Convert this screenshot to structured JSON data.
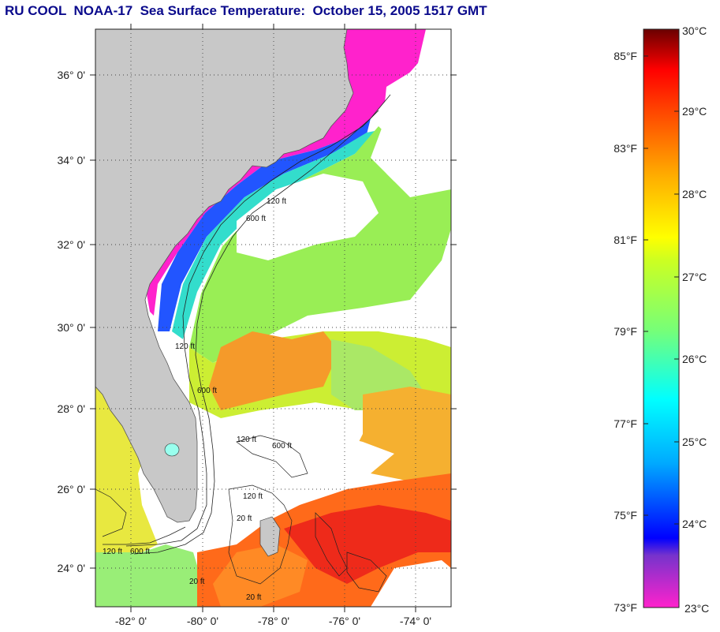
{
  "title": "RU COOL  NOAA-17  Sea Surface Temperature:  October 15, 2005 1517 GMT",
  "map": {
    "lat_labels": [
      "36° 0'",
      "34° 0'",
      "32° 0'",
      "30° 0'",
      "28° 0'",
      "26° 0'",
      "24° 0'"
    ],
    "lon_labels": [
      "-82° 0'",
      "-80° 0'",
      "-78° 0'",
      "-76° 0'",
      "-74° 0'"
    ],
    "isobath_labels": [
      "120 ft",
      "600 ft",
      "120 ft",
      "600 ft",
      "120 ft",
      "600 ft",
      "120 ft",
      "20 ft",
      "20 ft",
      "120 ft",
      "600 ft",
      "20 ft"
    ],
    "colors": {
      "land": "#c8c8c8",
      "cloud": "#ffffff",
      "coast_cold": "#ff22cc"
    }
  },
  "colorbar": {
    "fahrenheit_labels": [
      "85°F",
      "83°F",
      "81°F",
      "79°F",
      "77°F",
      "75°F",
      "73°F"
    ],
    "celsius_labels": [
      "30°C",
      "29°C",
      "28°C",
      "27°C",
      "26°C",
      "25°C",
      "24°C",
      "23°C"
    ],
    "colors": [
      "#ff22cc",
      "#6633cc",
      "#0000ff",
      "#00aaff",
      "#00ffff",
      "#55ff99",
      "#aaff33",
      "#ffff00",
      "#ffaa00",
      "#ff5500",
      "#ff0000",
      "#7a0000"
    ]
  }
}
